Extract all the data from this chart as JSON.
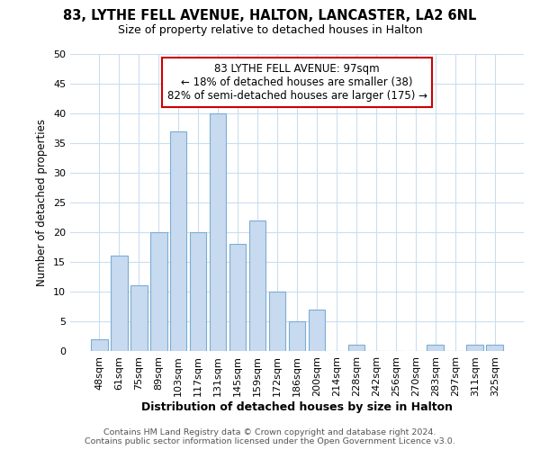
{
  "title": "83, LYTHE FELL AVENUE, HALTON, LANCASTER, LA2 6NL",
  "subtitle": "Size of property relative to detached houses in Halton",
  "xlabel": "Distribution of detached houses by size in Halton",
  "ylabel": "Number of detached properties",
  "bar_labels": [
    "48sqm",
    "61sqm",
    "75sqm",
    "89sqm",
    "103sqm",
    "117sqm",
    "131sqm",
    "145sqm",
    "159sqm",
    "172sqm",
    "186sqm",
    "200sqm",
    "214sqm",
    "228sqm",
    "242sqm",
    "256sqm",
    "270sqm",
    "283sqm",
    "297sqm",
    "311sqm",
    "325sqm"
  ],
  "bar_values": [
    2,
    16,
    11,
    20,
    37,
    20,
    40,
    18,
    22,
    10,
    5,
    7,
    0,
    1,
    0,
    0,
    0,
    1,
    0,
    1,
    1
  ],
  "bar_color": "#c8daf0",
  "bar_edgecolor": "#7aaed4",
  "annotation_line1": "83 LYTHE FELL AVENUE: 97sqm",
  "annotation_line2": "← 18% of detached houses are smaller (38)",
  "annotation_line3": "82% of semi-detached houses are larger (175) →",
  "annotation_box_edgecolor": "#cc0000",
  "annotation_box_facecolor": "#ffffff",
  "ylim": [
    0,
    50
  ],
  "yticks": [
    0,
    5,
    10,
    15,
    20,
    25,
    30,
    35,
    40,
    45,
    50
  ],
  "footer_line1": "Contains HM Land Registry data © Crown copyright and database right 2024.",
  "footer_line2": "Contains public sector information licensed under the Open Government Licence v3.0.",
  "background_color": "#ffffff",
  "grid_color": "#ccddf0"
}
